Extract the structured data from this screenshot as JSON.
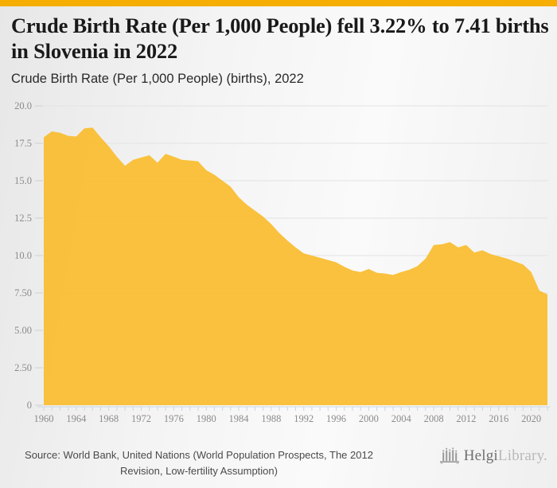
{
  "page": {
    "title": "Crude Birth Rate (Per 1,000 People) fell 3.22% to 7.41 births in Slovenia in 2022",
    "subtitle": "Crude Birth Rate (Per 1,000 People) (births), 2022",
    "source_note": "Source: World Bank, United Nations (World Population Prospects, The 2012 Revision, Low-fertility Assumption)",
    "brand": {
      "name_primary": "Helgi",
      "name_secondary": "Library.",
      "icon": "skyline-bars-icon"
    }
  },
  "colors": {
    "top_bar": "#f5ae01",
    "area_fill": "#f9be33",
    "gridline": "#e3e3e3",
    "x_axis": "#c9d6e3",
    "y_tick": "#cfcfcf",
    "axis_label": "#8b8b8b",
    "title_text": "#191919",
    "logo_gray": "#9b9b9b"
  },
  "chart_data": {
    "type": "area",
    "title": "Crude Birth Rate (Per 1,000 People) fell 3.22% to 7.41 births in Slovenia in 2022",
    "subtitle": "Crude Birth Rate (Per 1,000 People) (births), 2022",
    "series_name": "Crude Birth Rate (Per 1,000 People), Slovenia",
    "xlabel": "",
    "ylabel": "",
    "ylim": [
      0,
      20
    ],
    "xlim": [
      1960,
      2022
    ],
    "grid": true,
    "legend": "none",
    "latest_value": 7.41,
    "latest_change_pct": -3.22,
    "x": [
      1960,
      1961,
      1962,
      1963,
      1964,
      1965,
      1966,
      1967,
      1968,
      1969,
      1970,
      1971,
      1972,
      1973,
      1974,
      1975,
      1976,
      1977,
      1978,
      1979,
      1980,
      1981,
      1982,
      1983,
      1984,
      1985,
      1986,
      1987,
      1988,
      1989,
      1990,
      1991,
      1992,
      1993,
      1994,
      1995,
      1996,
      1997,
      1998,
      1999,
      2000,
      2001,
      2002,
      2003,
      2004,
      2005,
      2006,
      2007,
      2008,
      2009,
      2010,
      2011,
      2012,
      2013,
      2014,
      2015,
      2016,
      2017,
      2018,
      2019,
      2020,
      2021,
      2022
    ],
    "values": [
      17.9,
      18.3,
      18.2,
      18.0,
      17.95,
      18.5,
      18.55,
      17.9,
      17.3,
      16.6,
      16.0,
      16.4,
      16.55,
      16.7,
      16.2,
      16.8,
      16.6,
      16.4,
      16.35,
      16.3,
      15.7,
      15.4,
      15.0,
      14.6,
      13.9,
      13.4,
      13.0,
      12.6,
      12.1,
      11.5,
      11.0,
      10.55,
      10.15,
      10.0,
      9.85,
      9.7,
      9.55,
      9.25,
      9.0,
      8.9,
      9.1,
      8.85,
      8.8,
      8.7,
      8.9,
      9.05,
      9.3,
      9.8,
      10.7,
      10.75,
      10.9,
      10.55,
      10.7,
      10.2,
      10.35,
      10.1,
      9.95,
      9.8,
      9.6,
      9.4,
      8.9,
      7.66,
      7.41
    ],
    "yticks": [
      {
        "value": 0,
        "label": "0"
      },
      {
        "value": 2.5,
        "label": "2.50"
      },
      {
        "value": 5,
        "label": "5.00"
      },
      {
        "value": 7.5,
        "label": "7.50"
      },
      {
        "value": 10,
        "label": "10.0"
      },
      {
        "value": 12.5,
        "label": "12.5"
      },
      {
        "value": 15,
        "label": "15.0"
      },
      {
        "value": 17.5,
        "label": "17.5"
      },
      {
        "value": 20,
        "label": "20.0"
      }
    ],
    "xticks": [
      1960,
      1964,
      1968,
      1972,
      1976,
      1980,
      1984,
      1988,
      1992,
      1996,
      2000,
      2004,
      2008,
      2012,
      2016,
      2020
    ]
  }
}
